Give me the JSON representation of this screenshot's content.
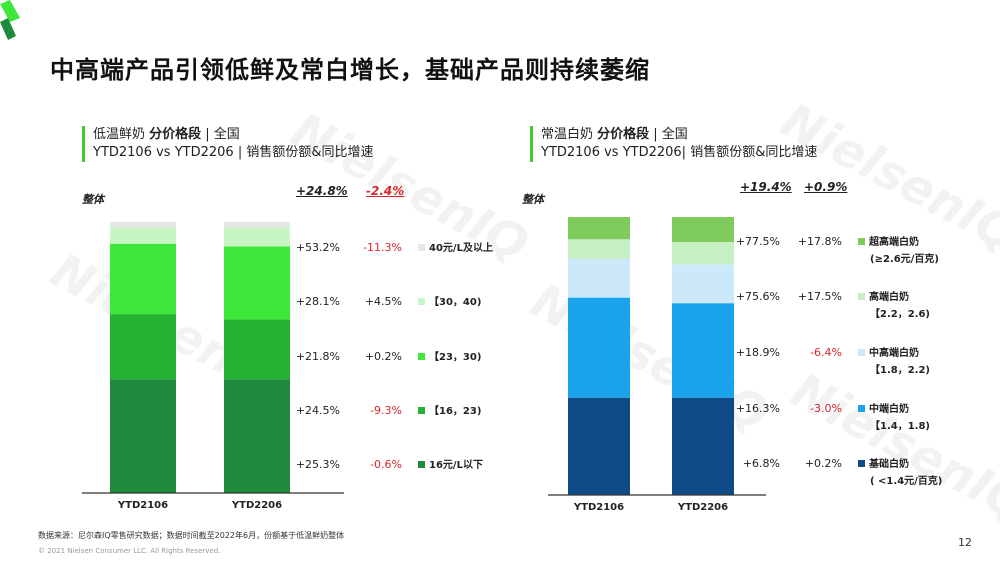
{
  "title": "中高端产品引领低鲜及常白增长，基础产品则持续萎缩",
  "watermark": "NielsenIQ",
  "footer": {
    "source": "数据来源：尼尔森IQ零售研究数据；数据时间截至2022年6月，份额基于低温鲜奶整体",
    "copyright": "© 2021 Nielsen Consumer LLC. All Rights Reserved.",
    "page_number": "12"
  },
  "chart_data": [
    {
      "type": "bar",
      "stacked": true,
      "normalized": true,
      "header_line1_pre": "低温鲜奶 ",
      "header_line1_bold": "分价格段",
      "header_line1_post": " | 全国",
      "header_line2": "YTD2106 vs YTD2206 | 销售额份额&同比增速",
      "whole_label": "整体",
      "total_growth_1": "+24.8%",
      "total_growth_2": "-2.4%",
      "categories": [
        "YTD2106",
        "YTD2206"
      ],
      "series": [
        {
          "name": "16元/L以下",
          "color": "#1e8a3c",
          "values": [
            42,
            42
          ],
          "growth_1": "+25.3%",
          "growth_2": "-0.6%"
        },
        {
          "name": "【16，23)",
          "color": "#27b133",
          "values": [
            24,
            22
          ],
          "growth_1": "+24.5%",
          "growth_2": "-9.3%"
        },
        {
          "name": "【23，30)",
          "color": "#3ee83a",
          "values": [
            26,
            27
          ],
          "growth_1": "+21.8%",
          "growth_2": "+0.2%"
        },
        {
          "name": "【30，40)",
          "color": "#c8f5c4",
          "values": [
            6,
            7
          ],
          "growth_1": "+28.1%",
          "growth_2": "+4.5%"
        },
        {
          "name": "40元/L及以上",
          "color": "#e6e6e6",
          "values": [
            2,
            2
          ],
          "growth_1": "+53.2%",
          "growth_2": "-11.3%"
        }
      ]
    },
    {
      "type": "bar",
      "stacked": true,
      "normalized": true,
      "header_line1_pre": "常温白奶 ",
      "header_line1_bold": "分价格段",
      "header_line1_post": " | 全国",
      "header_line2": "YTD2106 vs YTD2206| 销售额份额&同比增速",
      "whole_label": "整体",
      "total_growth_1": "+19.4%",
      "total_growth_2": "+0.9%",
      "categories": [
        "YTD2106",
        "YTD2206"
      ],
      "series": [
        {
          "name": "基础白奶",
          "name2": "( <1.4元/百克)",
          "color": "#0e4a85",
          "values": [
            35,
            35
          ],
          "growth_1": "+6.8%",
          "growth_2": "+0.2%"
        },
        {
          "name": "中端白奶",
          "name2": "【1.4，1.8)",
          "color": "#1aa3ea",
          "values": [
            36,
            34
          ],
          "growth_1": "+16.3%",
          "growth_2": "-3.0%"
        },
        {
          "name": "中高端白奶",
          "name2": "【1.8，2.2)",
          "color": "#cbe9f8",
          "values": [
            14,
            14
          ],
          "growth_1": "+18.9%",
          "growth_2": "-6.4%"
        },
        {
          "name": "高端白奶",
          "name2": "【2.2，2.6)",
          "color": "#c6f0c3",
          "values": [
            7,
            8
          ],
          "growth_1": "+75.6%",
          "growth_2": "+17.5%"
        },
        {
          "name": "超高端白奶",
          "name2": "(≥2.6元/百克)",
          "color": "#7fcc5c",
          "values": [
            8,
            9
          ],
          "growth_1": "+77.5%",
          "growth_2": "+17.8%"
        }
      ]
    }
  ]
}
